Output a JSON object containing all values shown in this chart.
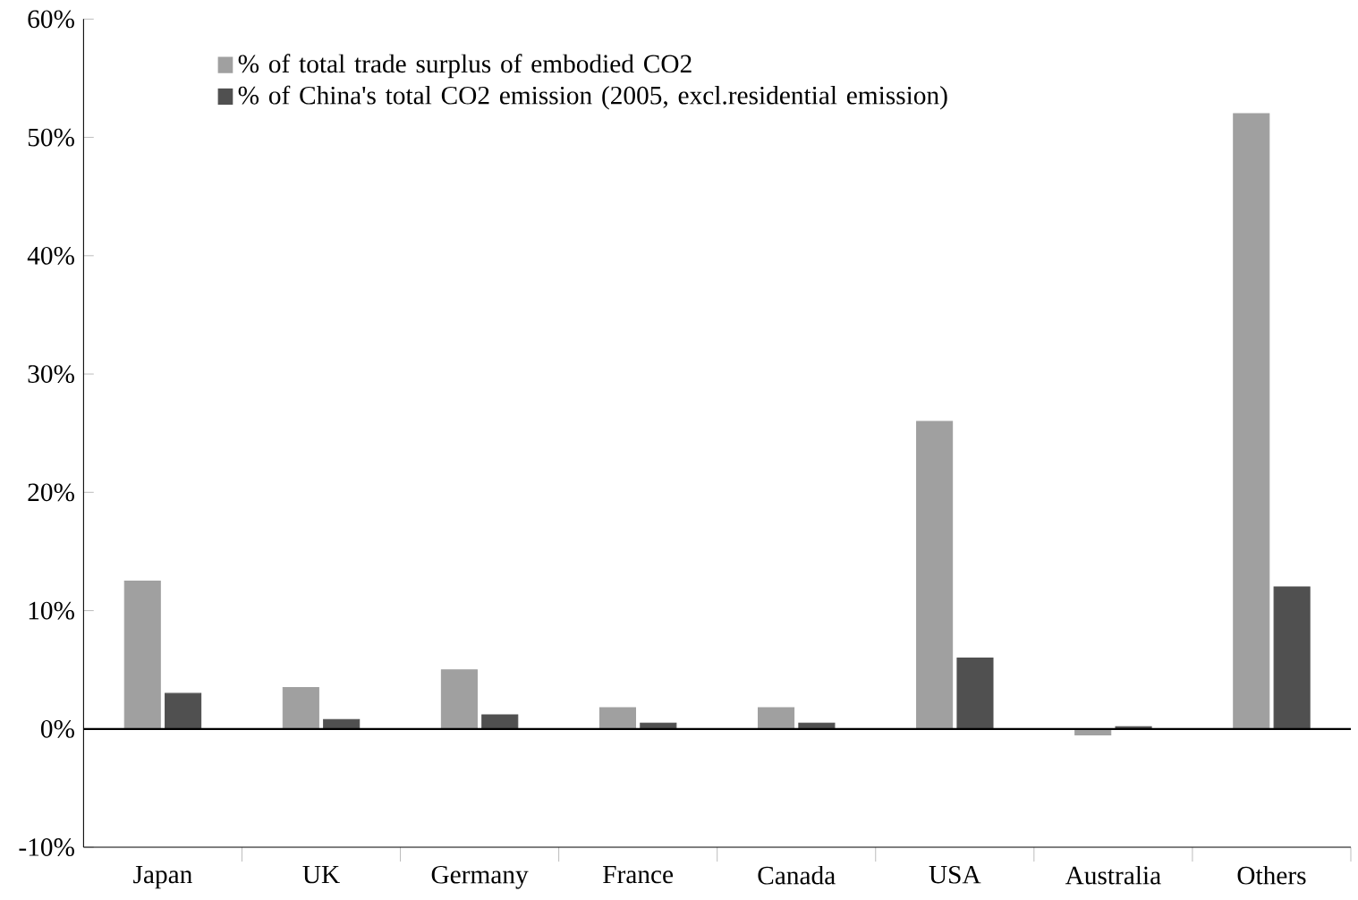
{
  "chart_data": {
    "type": "bar",
    "categories": [
      "Japan",
      "UK",
      "Germany",
      "France",
      "Canada",
      "USA",
      "Australia",
      "Others"
    ],
    "series": [
      {
        "name": "% of total trade surplus of embodied CO2",
        "color": "#a0a0a0",
        "values": [
          12.5,
          3.5,
          5.0,
          1.8,
          1.8,
          26,
          -0.5,
          52
        ]
      },
      {
        "name": "% of China's total CO2 emission (2005, excl.residential emission)",
        "color": "#505050",
        "values": [
          3.0,
          0.8,
          1.2,
          0.5,
          0.5,
          6,
          0.2,
          12
        ]
      }
    ],
    "ylim": [
      -10,
      60
    ],
    "yticks": [
      {
        "value": -10,
        "label": "-10%"
      },
      {
        "value": 0,
        "label": "0%"
      },
      {
        "value": 10,
        "label": "10%"
      },
      {
        "value": 20,
        "label": "20%"
      },
      {
        "value": 30,
        "label": "30%"
      },
      {
        "value": 40,
        "label": "40%"
      },
      {
        "value": 50,
        "label": "50%"
      },
      {
        "value": 60,
        "label": "60%"
      }
    ],
    "ref_lines": [
      {
        "axis": "y",
        "value": 0,
        "color": "#000000"
      }
    ],
    "legend": "top left",
    "grid": false
  }
}
